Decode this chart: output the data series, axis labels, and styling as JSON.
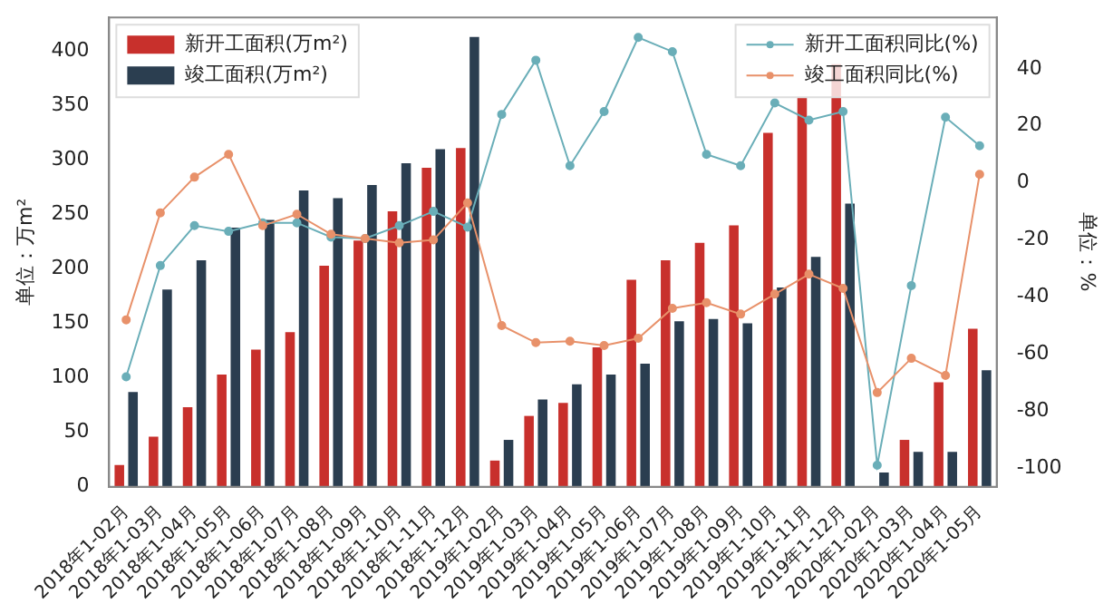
{
  "chart_data": {
    "type": "bar",
    "categories": [
      "2018年1-02月",
      "2018年1-03月",
      "2018年1-04月",
      "2018年1-05月",
      "2018年1-06月",
      "2018年1-07月",
      "2018年1-08月",
      "2018年1-09月",
      "2018年1-10月",
      "2018年1-11月",
      "2018年1-12月",
      "2019年1-02月",
      "2019年1-03月",
      "2019年1-04月",
      "2019年1-05月",
      "2019年1-06月",
      "2019年1-07月",
      "2019年1-08月",
      "2019年1-09月",
      "2019年1-10月",
      "2019年1-11月",
      "2019年1-12月",
      "2020年1-02月",
      "2020年1-03月",
      "2020年1-04月",
      "2020年1-05月"
    ],
    "ylabel": "单位：万m²",
    "y2label": "单位：%",
    "ylim": [
      0,
      431
    ],
    "yticks": [
      0,
      50,
      100,
      150,
      200,
      250,
      300,
      350,
      400
    ],
    "y2lim": [
      -106.5,
      58
    ],
    "y2ticks": [
      -100,
      -80,
      -60,
      -40,
      -20,
      0,
      20,
      40
    ],
    "legend": "top",
    "grid": false,
    "series": [
      {
        "name": "新开工面积(万m²)",
        "color": "#c8302c",
        "values": [
          20,
          46,
          73,
          103,
          126,
          142,
          203,
          226,
          253,
          293,
          311,
          24,
          65,
          77,
          128,
          190,
          208,
          224,
          240,
          325,
          357,
          388,
          null,
          43,
          96,
          145
        ]
      },
      {
        "name": "竣工面积(万m²)",
        "color": "#2b3e50",
        "values": [
          87,
          181,
          208,
          238,
          245,
          272,
          265,
          277,
          297,
          310,
          413,
          43,
          80,
          94,
          103,
          113,
          152,
          154,
          150,
          183,
          211,
          260,
          13,
          32,
          32,
          107
        ]
      },
      {
        "name": "新开工面积同比(%)",
        "type": "line",
        "axis": "y2",
        "color": "#6aaeb8",
        "marker": "circle",
        "values": [
          -68,
          -29,
          -15,
          -17,
          -14,
          -14,
          -19,
          -19.5,
          -15,
          -10,
          -15.5,
          24,
          43,
          6,
          25,
          51,
          46,
          10,
          6,
          28,
          22,
          25,
          -99,
          -36,
          23,
          13
        ]
      },
      {
        "name": "竣工面积同比(%)",
        "type": "line",
        "axis": "y2",
        "color": "#e8916a",
        "marker": "circle",
        "values": [
          -48,
          -10.5,
          2,
          10,
          -15,
          -11,
          -18,
          -19.5,
          -21,
          -20,
          -7,
          -50,
          -56,
          -55.5,
          -57,
          -54.5,
          -44,
          -42,
          -46,
          -39,
          -32,
          -37,
          -73.5,
          -61.5,
          -67.5,
          3
        ]
      }
    ]
  }
}
